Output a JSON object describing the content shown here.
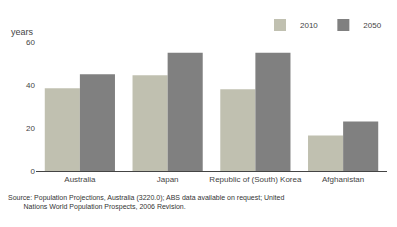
{
  "chart_data": {
    "type": "bar",
    "ylabel": "years",
    "categories": [
      "Australia",
      "Japan",
      "Republic of (South) Korea",
      "Afghanistan"
    ],
    "series": [
      {
        "name": "2010",
        "color": "#c0c0b0",
        "values": [
          38.5,
          44.5,
          38.0,
          16.5
        ]
      },
      {
        "name": "2050",
        "color": "#808080",
        "values": [
          45.0,
          55.0,
          55.0,
          23.0
        ]
      }
    ],
    "ylim": [
      0,
      60
    ],
    "yticks": [
      0,
      20,
      40,
      60
    ],
    "grid": false,
    "legend": "upper right",
    "annotations": [
      "Source: Population Projections, Australia (3220.0); ABS data available on request; United",
      "        Nations World Population Prospects, 2006 Revision."
    ]
  }
}
